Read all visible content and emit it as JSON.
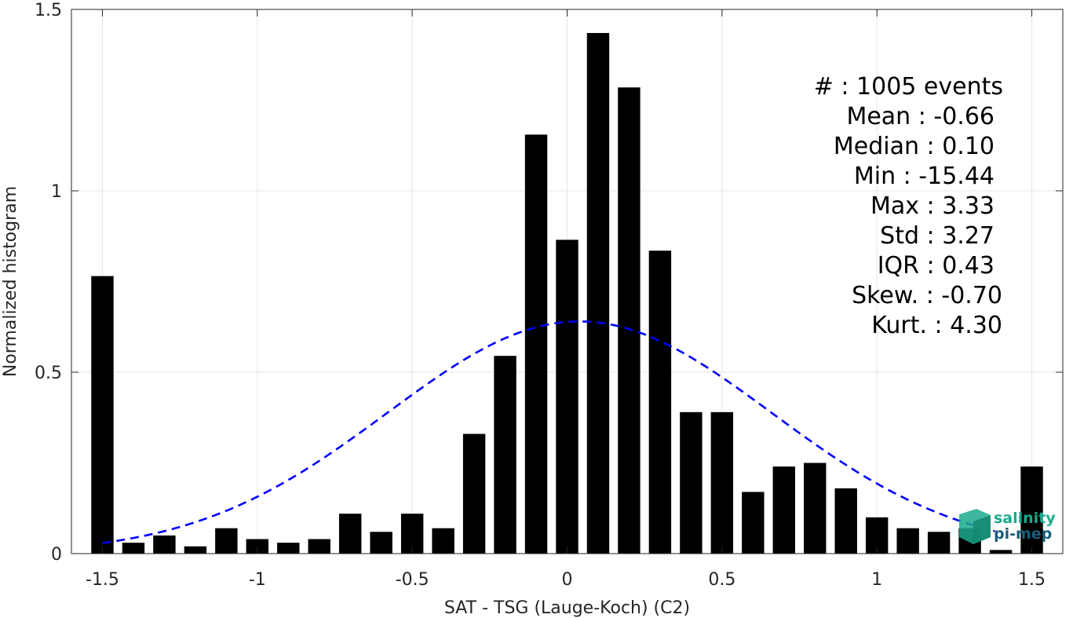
{
  "chart_data": {
    "type": "bar",
    "xlabel": "SAT - TSG (Lauge-Koch) (C2)",
    "ylabel": "Normalized histogram",
    "xlim": [
      -1.6,
      1.6
    ],
    "ylim": [
      0,
      1.5
    ],
    "x_ticks": [
      "-1.5",
      "-1",
      "-0.5",
      "0",
      "0.5",
      "1",
      "1.5"
    ],
    "x_tick_values": [
      -1.5,
      -1,
      -0.5,
      0,
      0.5,
      1,
      1.5
    ],
    "y_ticks": [
      "0",
      "0.5",
      "1",
      "1.5"
    ],
    "y_tick_values": [
      0,
      0.5,
      1,
      1.5
    ],
    "grid": true,
    "bar_color": "#000000",
    "bins": {
      "x": [
        -1.5,
        -1.4,
        -1.3,
        -1.2,
        -1.1,
        -1.0,
        -0.9,
        -0.8,
        -0.7,
        -0.6,
        -0.5,
        -0.4,
        -0.3,
        -0.2,
        -0.1,
        0.0,
        0.1,
        0.2,
        0.3,
        0.4,
        0.5,
        0.6,
        0.7,
        0.8,
        0.9,
        1.0,
        1.1,
        1.2,
        1.3,
        1.4,
        1.5
      ],
      "values": [
        0.765,
        0.03,
        0.05,
        0.02,
        0.07,
        0.04,
        0.03,
        0.04,
        0.11,
        0.06,
        0.11,
        0.07,
        0.33,
        0.545,
        1.155,
        0.865,
        1.435,
        1.285,
        0.835,
        0.39,
        0.39,
        0.17,
        0.24,
        0.25,
        0.18,
        0.1,
        0.07,
        0.06,
        0.07,
        0.01,
        0.24
      ]
    },
    "fit_curve": {
      "style": "dashed",
      "color": "#0000ff",
      "x_range": [
        -1.5,
        1.38
      ],
      "mean": 0.04,
      "std": 0.62,
      "peak": 0.64
    }
  },
  "stats": [
    "#  : 1005 events",
    "Mean : -0.66",
    "Median : 0.10",
    "Min : -15.44",
    "Max : 3.33",
    "Std : 3.27",
    "IQR : 0.43",
    "Skew. : -0.70",
    "Kurt. : 4.30"
  ],
  "logo": {
    "line1": "salinity",
    "line2": "pi-mep",
    "color1": "#1aaa8c",
    "color2": "#1a5e7a"
  }
}
